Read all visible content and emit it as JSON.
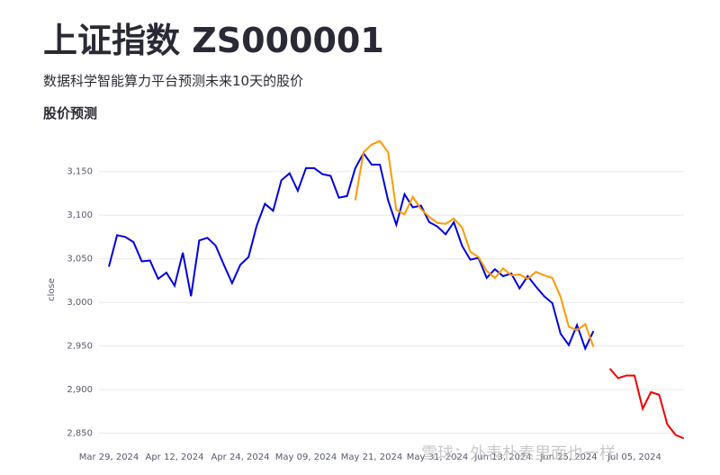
{
  "header": {
    "title": "上证指数 ZS000001",
    "subtitle": "数据科学智能算力平台预测未来10天的股价",
    "section": "股价预测"
  },
  "watermark": "雪球：外表朴素里面也一样",
  "chart_data": {
    "type": "line",
    "ylabel": "close",
    "categories": [
      "Mar 29, 2024",
      null,
      null,
      null,
      null,
      null,
      null,
      null,
      "Apr 12, 2024",
      null,
      null,
      null,
      null,
      null,
      null,
      null,
      "Apr 24, 2024",
      null,
      null,
      null,
      null,
      null,
      null,
      null,
      "May 09, 2024",
      null,
      null,
      null,
      null,
      null,
      null,
      null,
      "May 21, 2024",
      null,
      null,
      null,
      null,
      null,
      null,
      null,
      "May 31, 2024",
      null,
      null,
      null,
      null,
      null,
      null,
      null,
      "Jun 13, 2024",
      null,
      null,
      null,
      null,
      null,
      null,
      null,
      "Jun 25, 2024",
      null,
      null,
      null,
      null,
      null,
      null,
      null,
      "Jul 05, 2024",
      null,
      null,
      null,
      null,
      null,
      null
    ],
    "series": [
      {
        "color": "#0000dd",
        "values": [
          3041,
          3077,
          3075,
          3069,
          3047,
          3048,
          3027,
          3034,
          3019,
          3057,
          3007,
          3071,
          3074,
          3065,
          3043,
          3022,
          3043,
          3052,
          3088,
          3113,
          3105,
          3140,
          3148,
          3128,
          3154,
          3154,
          3147,
          3145,
          3120,
          3122,
          3154,
          3171,
          3158,
          3158,
          3117,
          3089,
          3124,
          3109,
          3111,
          3092,
          3087,
          3078,
          3092,
          3065,
          3049,
          3051,
          3028,
          3038,
          3030,
          3033,
          3016,
          3030,
          3018,
          3007,
          2999,
          2964,
          2951,
          2974,
          2947,
          2967,
          null,
          null,
          null,
          null,
          null,
          null,
          null,
          null,
          null,
          null,
          null
        ]
      },
      {
        "color": "#ff9900",
        "values": [
          null,
          null,
          null,
          null,
          null,
          null,
          null,
          null,
          null,
          null,
          null,
          null,
          null,
          null,
          null,
          null,
          null,
          null,
          null,
          null,
          null,
          null,
          null,
          null,
          null,
          null,
          null,
          null,
          null,
          null,
          3117,
          3172,
          3181,
          3185,
          3172,
          3106,
          3101,
          3121,
          3107,
          3098,
          3091,
          3090,
          3096,
          3086,
          3058,
          3052,
          3036,
          3028,
          3039,
          3031,
          3032,
          3027,
          3035,
          3031,
          3028,
          3006,
          2972,
          2968,
          2975,
          2949,
          null,
          null,
          null,
          null,
          null,
          null,
          null,
          null,
          null,
          null,
          null
        ]
      },
      {
        "color": "#ee0000",
        "values": [
          null,
          null,
          null,
          null,
          null,
          null,
          null,
          null,
          null,
          null,
          null,
          null,
          null,
          null,
          null,
          null,
          null,
          null,
          null,
          null,
          null,
          null,
          null,
          null,
          null,
          null,
          null,
          null,
          null,
          null,
          null,
          null,
          null,
          null,
          null,
          null,
          null,
          null,
          null,
          null,
          null,
          null,
          null,
          null,
          null,
          null,
          null,
          null,
          null,
          null,
          null,
          null,
          null,
          null,
          null,
          null,
          null,
          null,
          null,
          null,
          null,
          2924,
          2913,
          2916,
          2916,
          2878,
          2897,
          2894,
          2860,
          2848,
          2844
        ]
      }
    ],
    "ylim": [
      2836,
      3192
    ],
    "yticks": [
      {
        "value": 2850,
        "label": "2,850"
      },
      {
        "value": 2900,
        "label": "2,900"
      },
      {
        "value": 2950,
        "label": "2,950"
      },
      {
        "value": 3000,
        "label": "3,000"
      },
      {
        "value": 3050,
        "label": "3,050"
      },
      {
        "value": 3100,
        "label": "3,100"
      },
      {
        "value": 3150,
        "label": "3,150"
      }
    ],
    "grid": true
  }
}
